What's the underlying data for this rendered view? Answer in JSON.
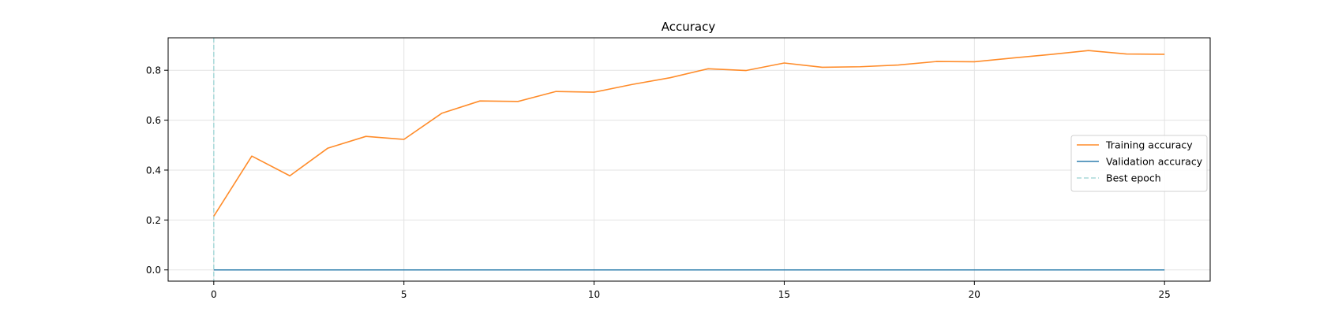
{
  "chart_data": {
    "type": "line",
    "title": "Accuracy",
    "xlabel": "",
    "ylabel": "",
    "xlim": [
      -1.2,
      26.2
    ],
    "ylim": [
      -0.045,
      0.93
    ],
    "xticks": [
      0,
      5,
      10,
      15,
      20,
      25
    ],
    "yticks": [
      0.0,
      0.2,
      0.4,
      0.6,
      0.8
    ],
    "grid": true,
    "legend_position": "center-right",
    "x": [
      0,
      1,
      2,
      3,
      4,
      5,
      6,
      7,
      8,
      9,
      10,
      11,
      12,
      13,
      14,
      15,
      16,
      17,
      18,
      19,
      20,
      21,
      22,
      23,
      24,
      25
    ],
    "series": [
      {
        "name": "Training accuracy",
        "color": "#ff8c2a",
        "style": "solid",
        "values": [
          0.215,
          0.456,
          0.377,
          0.488,
          0.535,
          0.523,
          0.628,
          0.677,
          0.675,
          0.715,
          0.712,
          0.743,
          0.77,
          0.806,
          0.799,
          0.829,
          0.812,
          0.814,
          0.821,
          0.835,
          0.834,
          0.849,
          0.863,
          0.879,
          0.865,
          0.864
        ]
      },
      {
        "name": "Validation accuracy",
        "color": "#2f7fad",
        "style": "solid",
        "values": [
          0.0,
          0.0,
          0.0,
          0.0,
          0.0,
          0.0,
          0.0,
          0.0,
          0.0,
          0.0,
          0.0,
          0.0,
          0.0,
          0.0,
          0.0,
          0.0,
          0.0,
          0.0,
          0.0,
          0.0,
          0.0,
          0.0,
          0.0,
          0.0,
          0.0,
          0.0
        ]
      }
    ],
    "markers": [
      {
        "name": "Best epoch",
        "type": "vline",
        "x": 0,
        "color": "#a8d8d8",
        "style": "dashed"
      }
    ]
  }
}
